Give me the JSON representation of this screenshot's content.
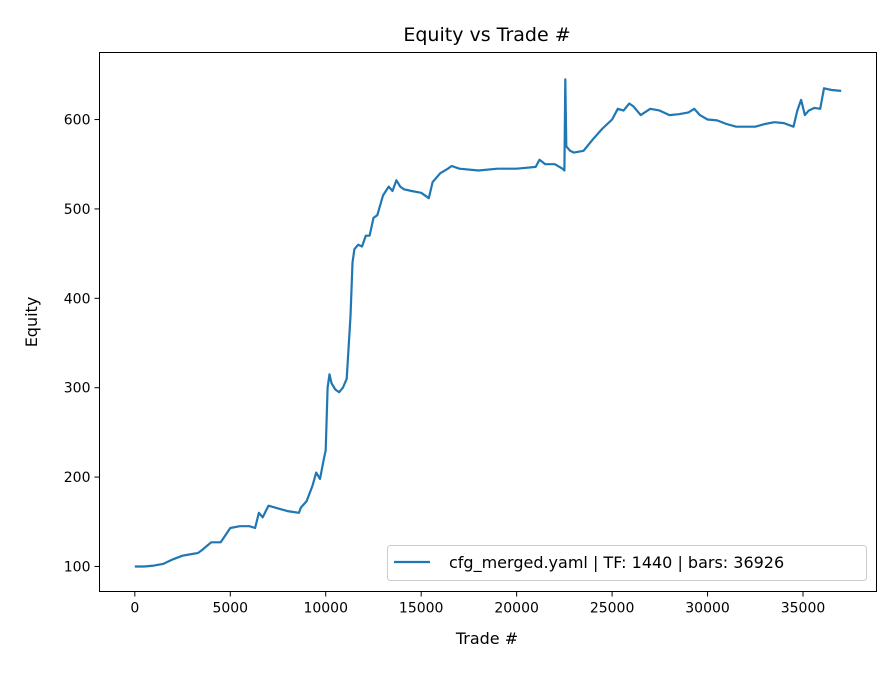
{
  "chart_data": {
    "type": "line",
    "title": "Equity vs Trade #",
    "xlabel": "Trade #",
    "ylabel": "Equity",
    "xlim": [
      -1850,
      38850
    ],
    "ylim": [
      72,
      675
    ],
    "xticks": [
      0,
      5000,
      10000,
      15000,
      20000,
      25000,
      30000,
      35000
    ],
    "yticks": [
      100,
      200,
      300,
      400,
      500,
      600
    ],
    "grid": false,
    "legend_placement": "lower-right",
    "color": "#1f77b4",
    "series": [
      {
        "name": "cfg_merged.yaml | TF: 1440 | bars: 36926",
        "x": [
          0,
          500,
          1000,
          1500,
          2000,
          2500,
          3000,
          3300,
          3500,
          4000,
          4500,
          5000,
          5500,
          6000,
          6300,
          6500,
          6700,
          7000,
          7500,
          8000,
          8600,
          8700,
          9000,
          9300,
          9500,
          9700,
          9900,
          10000,
          10100,
          10200,
          10300,
          10500,
          10700,
          10900,
          11100,
          11300,
          11400,
          11500,
          11700,
          11900,
          12100,
          12300,
          12500,
          12700,
          13000,
          13300,
          13500,
          13700,
          13900,
          14100,
          14500,
          15000,
          15400,
          15600,
          16000,
          16400,
          16600,
          17000,
          18000,
          19000,
          20000,
          20500,
          21000,
          21200,
          21500,
          22000,
          22400,
          22500,
          22550,
          22600,
          22800,
          23000,
          23500,
          24000,
          24500,
          25000,
          25300,
          25600,
          25900,
          26100,
          26500,
          27000,
          27500,
          28000,
          28500,
          29000,
          29300,
          29600,
          30000,
          30500,
          31000,
          31500,
          32000,
          32500,
          33000,
          33500,
          34000,
          34500,
          34700,
          34900,
          35100,
          35300,
          35600,
          35900,
          36100,
          36500,
          37000
        ],
        "y": [
          100,
          100,
          101,
          103,
          108,
          112,
          114,
          115,
          118,
          127,
          127,
          143,
          145,
          145,
          143,
          160,
          155,
          168,
          165,
          162,
          160,
          166,
          173,
          190,
          205,
          198,
          220,
          230,
          300,
          315,
          305,
          298,
          295,
          300,
          310,
          380,
          440,
          455,
          460,
          458,
          470,
          470,
          490,
          493,
          515,
          525,
          520,
          532,
          525,
          522,
          520,
          518,
          512,
          530,
          540,
          545,
          548,
          545,
          543,
          545,
          545,
          546,
          547,
          555,
          550,
          550,
          545,
          543,
          645,
          570,
          565,
          563,
          565,
          578,
          590,
          600,
          612,
          610,
          618,
          615,
          605,
          612,
          610,
          605,
          606,
          608,
          612,
          605,
          600,
          599,
          595,
          592,
          592,
          592,
          595,
          597,
          596,
          592,
          610,
          622,
          605,
          610,
          613,
          612,
          635,
          633,
          632
        ]
      }
    ]
  }
}
